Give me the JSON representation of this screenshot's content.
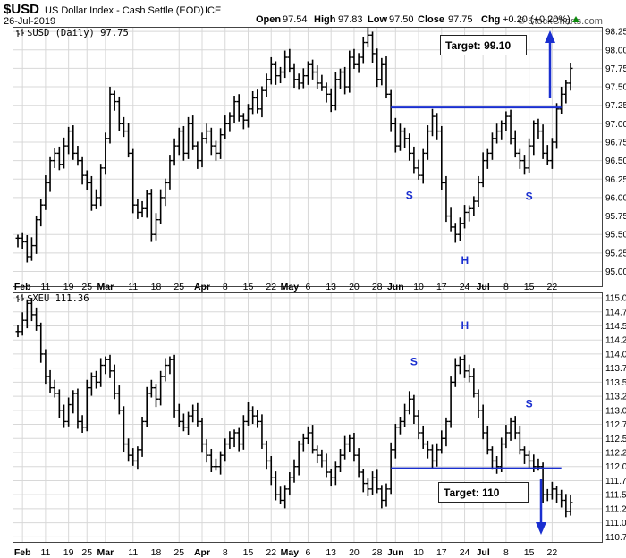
{
  "header": {
    "symbol": "$USD",
    "name": "US Dollar Index - Cash Settle (EOD)",
    "exchange": "ICE",
    "date": "26-Jul-2019",
    "brand": "© StockCharts.com",
    "open_label": "Open",
    "open": "97.54",
    "high_label": "High",
    "high": "97.83",
    "low_label": "Low",
    "low": "97.50",
    "close_label": "Close",
    "close": "97.75",
    "chg_label": "Chg",
    "chg": "+0.20 (+0.20%)",
    "chg_icon": "up-triangle-icon"
  },
  "x_ticks": [
    {
      "label": "Feb",
      "bold": true,
      "i": 1
    },
    {
      "label": "11",
      "bold": false,
      "i": 6
    },
    {
      "label": "19",
      "bold": false,
      "i": 11
    },
    {
      "label": "25",
      "bold": false,
      "i": 15
    },
    {
      "label": "Mar",
      "bold": true,
      "i": 19
    },
    {
      "label": "11",
      "bold": false,
      "i": 25
    },
    {
      "label": "18",
      "bold": false,
      "i": 30
    },
    {
      "label": "25",
      "bold": false,
      "i": 35
    },
    {
      "label": "Apr",
      "bold": true,
      "i": 40
    },
    {
      "label": "8",
      "bold": false,
      "i": 45
    },
    {
      "label": "15",
      "bold": false,
      "i": 50
    },
    {
      "label": "22",
      "bold": false,
      "i": 55
    },
    {
      "label": "May",
      "bold": true,
      "i": 59
    },
    {
      "label": "6",
      "bold": false,
      "i": 63
    },
    {
      "label": "13",
      "bold": false,
      "i": 68
    },
    {
      "label": "20",
      "bold": false,
      "i": 73
    },
    {
      "label": "28",
      "bold": false,
      "i": 78
    },
    {
      "label": "Jun",
      "bold": true,
      "i": 82
    },
    {
      "label": "10",
      "bold": false,
      "i": 87
    },
    {
      "label": "17",
      "bold": false,
      "i": 92
    },
    {
      "label": "24",
      "bold": false,
      "i": 97
    },
    {
      "label": "Jul",
      "bold": true,
      "i": 101
    },
    {
      "label": "8",
      "bold": false,
      "i": 106
    },
    {
      "label": "15",
      "bold": false,
      "i": 111
    },
    {
      "label": "22",
      "bold": false,
      "i": 116
    }
  ],
  "chart_data": [
    {
      "type": "ohlc",
      "label": "$USD (Daily) 97.75",
      "ylim": [
        94.8,
        98.3
      ],
      "y_ticks": [
        "95.00",
        "95.25",
        "95.50",
        "95.75",
        "96.00",
        "96.25",
        "96.50",
        "96.75",
        "97.00",
        "97.25",
        "97.50",
        "97.75",
        "98.00",
        "98.25"
      ],
      "grid": true,
      "closes": [
        95.45,
        95.4,
        95.2,
        95.35,
        95.7,
        95.9,
        96.2,
        96.5,
        96.6,
        96.45,
        96.7,
        96.9,
        96.6,
        96.5,
        96.3,
        96.2,
        95.9,
        96.0,
        96.4,
        96.8,
        97.4,
        97.3,
        97.0,
        96.9,
        96.6,
        95.9,
        95.8,
        95.85,
        96.05,
        95.5,
        95.7,
        96.0,
        96.2,
        96.5,
        96.7,
        96.9,
        96.6,
        97.0,
        96.7,
        96.5,
        96.8,
        96.9,
        96.7,
        96.6,
        96.85,
        97.0,
        97.1,
        97.3,
        97.1,
        97.05,
        97.2,
        97.35,
        97.2,
        97.45,
        97.6,
        97.8,
        97.65,
        97.7,
        97.9,
        97.75,
        97.6,
        97.55,
        97.65,
        97.8,
        97.7,
        97.55,
        97.5,
        97.4,
        97.25,
        97.6,
        97.7,
        97.5,
        97.9,
        97.8,
        97.9,
        98.1,
        98.2,
        97.95,
        97.6,
        97.8,
        97.4,
        97.0,
        96.7,
        96.9,
        96.8,
        96.6,
        96.4,
        96.3,
        96.6,
        96.9,
        97.1,
        96.9,
        96.2,
        95.75,
        95.6,
        95.5,
        95.65,
        95.8,
        95.85,
        95.95,
        96.2,
        96.5,
        96.6,
        96.8,
        96.9,
        97.0,
        97.1,
        96.8,
        96.6,
        96.5,
        96.4,
        96.7,
        97.0,
        96.9,
        96.6,
        96.5,
        96.75,
        97.2,
        97.4,
        97.55,
        97.75
      ],
      "target_line": {
        "start_index": 81,
        "end_index": 118,
        "value": 97.22
      },
      "annotations": [
        {
          "text": "S",
          "index": 85,
          "value": 96.03
        },
        {
          "text": "H",
          "index": 97,
          "value": 95.15
        },
        {
          "text": "S",
          "index": 111,
          "value": 96.02
        }
      ],
      "target_label": "Target: 99.10",
      "target_arrow": "up-arrow-icon",
      "line_color": "#1a2fd0"
    },
    {
      "type": "ohlc",
      "label": "$XEU 111.36",
      "ylim": [
        110.66,
        115.08
      ],
      "y_ticks": [
        "110.75",
        "111.00",
        "111.25",
        "111.50",
        "111.75",
        "112.00",
        "112.25",
        "112.50",
        "112.75",
        "113.00",
        "113.25",
        "113.50",
        "113.75",
        "114.00",
        "114.25",
        "114.50",
        "114.75",
        "115.00"
      ],
      "grid": true,
      "closes": [
        114.4,
        114.6,
        114.9,
        114.7,
        114.5,
        114.0,
        113.6,
        113.4,
        113.3,
        113.0,
        112.8,
        113.1,
        113.3,
        112.8,
        112.7,
        113.4,
        113.6,
        113.5,
        113.8,
        113.9,
        113.7,
        113.3,
        113.0,
        112.4,
        112.2,
        112.1,
        112.3,
        112.8,
        113.3,
        113.4,
        113.2,
        113.6,
        113.8,
        113.9,
        113.0,
        112.8,
        112.7,
        112.9,
        113.0,
        112.8,
        112.4,
        112.2,
        112.0,
        112.0,
        112.2,
        112.4,
        112.5,
        112.6,
        112.4,
        112.8,
        113.0,
        112.9,
        112.8,
        112.4,
        112.1,
        111.8,
        111.5,
        111.4,
        111.6,
        111.8,
        112.0,
        112.4,
        112.5,
        112.6,
        112.3,
        112.2,
        112.1,
        111.9,
        111.8,
        112.0,
        112.2,
        112.4,
        112.5,
        112.2,
        111.9,
        111.7,
        111.6,
        111.8,
        111.6,
        111.4,
        111.6,
        112.3,
        112.7,
        112.8,
        113.0,
        113.2,
        112.9,
        112.6,
        112.4,
        112.3,
        112.1,
        112.3,
        112.5,
        112.8,
        113.5,
        113.8,
        113.9,
        113.7,
        113.6,
        113.3,
        113.0,
        112.6,
        112.3,
        112.1,
        112.0,
        112.4,
        112.6,
        112.8,
        112.6,
        112.3,
        112.2,
        112.1,
        112.0,
        112.0,
        111.5,
        111.5,
        111.6,
        111.5,
        111.4,
        111.2,
        111.36
      ],
      "target_line": {
        "start_index": 81,
        "end_index": 118,
        "value": 111.97
      },
      "annotations": [
        {
          "text": "S",
          "index": 86,
          "value": 113.86
        },
        {
          "text": "H",
          "index": 97,
          "value": 114.51
        },
        {
          "text": "S",
          "index": 111,
          "value": 113.12
        }
      ],
      "target_label": "Target: 110",
      "target_arrow": "down-arrow-icon",
      "line_color": "#1a2fd0"
    }
  ]
}
